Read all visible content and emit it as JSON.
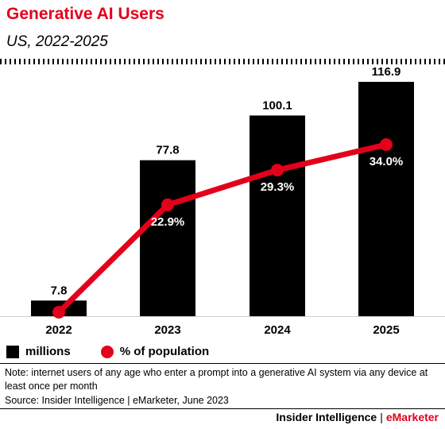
{
  "header": {
    "title": "Generative AI Users",
    "subtitle": "US, 2022-2025"
  },
  "chart_data": {
    "type": "bar",
    "categories": [
      "2022",
      "2023",
      "2024",
      "2025"
    ],
    "series": [
      {
        "name": "millions",
        "type": "bar",
        "values": [
          7.8,
          77.8,
          100.1,
          116.9
        ],
        "labels": [
          "7.8",
          "77.8",
          "100.1",
          "116.9"
        ],
        "color": "#000000"
      },
      {
        "name": "% of population",
        "type": "line",
        "values": [
          3.1,
          22.9,
          29.3,
          34.0
        ],
        "labels": [
          "",
          "22.9%",
          "29.3%",
          "34.0%"
        ],
        "color": "#e3001b"
      }
    ],
    "ylim_bars": [
      0,
      116.9
    ],
    "ylim_line": [
      0,
      40
    ],
    "grid": false
  },
  "legend": {
    "bars_label": "millions",
    "line_label": "% of population"
  },
  "note": "Note: internet users of any age who enter a prompt into a generative AI system via any device at least once per month",
  "source": "Source: Insider Intelligence | eMarketer, June 2023",
  "footer": {
    "brand1": "Insider Intelligence",
    "separator": "|",
    "brand2": "eMarketer"
  },
  "colors": {
    "accent": "#e3001b",
    "bar": "#000000"
  }
}
